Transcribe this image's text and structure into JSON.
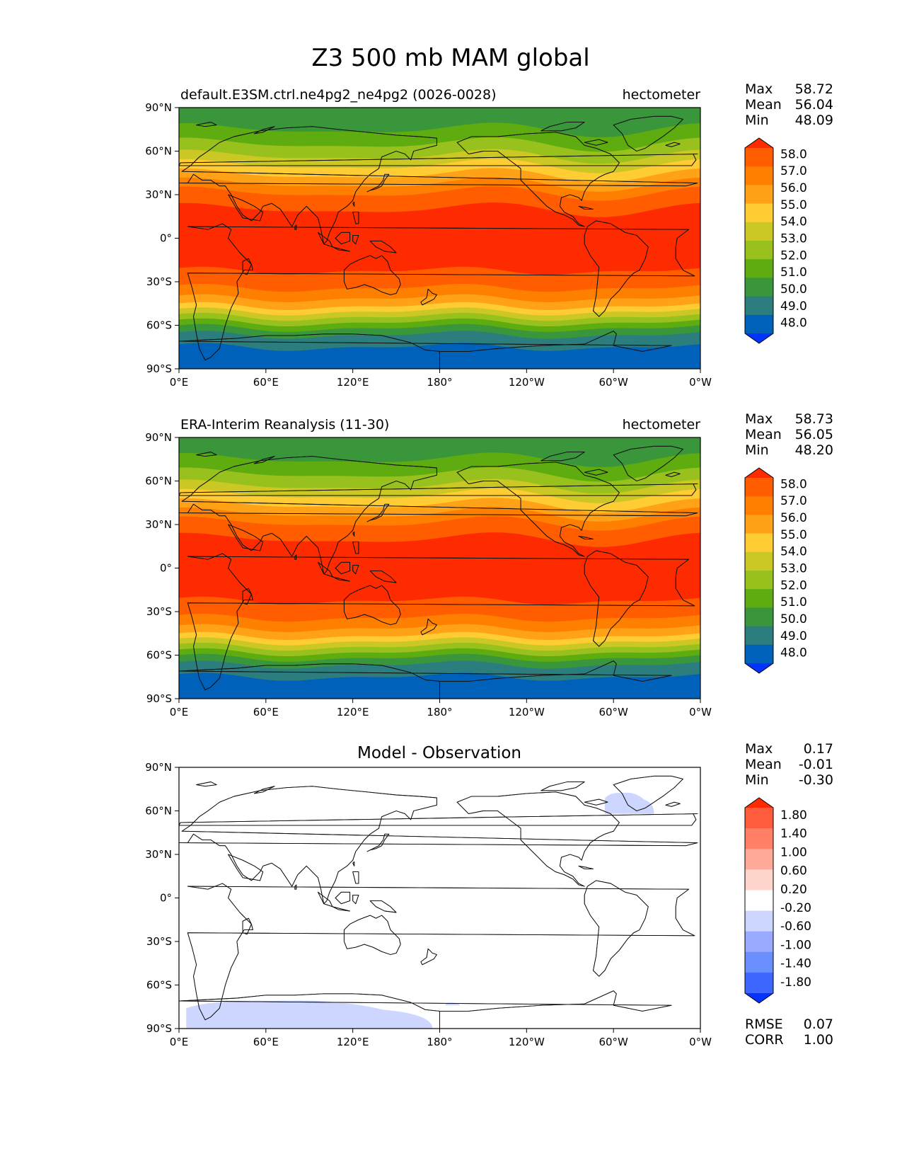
{
  "figure_title": "Z3 500 mb MAM global",
  "colors": {
    "abs_levels": [
      "#0433ff",
      "#0061bb",
      "#2c7d7d",
      "#3a963a",
      "#5fac10",
      "#99c11d",
      "#cbc724",
      "#ffcc33",
      "#ffa218",
      "#ff7f00",
      "#ff5d00",
      "#ff2b00"
    ],
    "diff_levels": [
      "#0433ff",
      "#3e67ff",
      "#6a8fff",
      "#99aaff",
      "#ccd6ff",
      "#ffffff",
      "#ffd6cc",
      "#ffaa99",
      "#ff8066",
      "#ff5c3d",
      "#ff2b00"
    ]
  },
  "panels": [
    {
      "id": "test",
      "left_title": "default.E3SM.ctrl.ne4pg2_ne4pg2 (0026-0028)",
      "right_title": "hectometer",
      "center_title": "",
      "stats": [
        {
          "label": "Max",
          "value": "58.72"
        },
        {
          "label": "Mean",
          "value": "56.04"
        },
        {
          "label": "Min",
          "value": "48.09"
        }
      ],
      "bottom_stats": []
    },
    {
      "id": "ref",
      "left_title": "ERA-Interim Reanalysis (11-30)",
      "right_title": "hectometer",
      "center_title": "",
      "stats": [
        {
          "label": "Max",
          "value": "58.73"
        },
        {
          "label": "Mean",
          "value": "56.05"
        },
        {
          "label": "Min",
          "value": "48.20"
        }
      ],
      "bottom_stats": []
    },
    {
      "id": "diff",
      "left_title": "",
      "right_title": "",
      "center_title": "Model - Observation",
      "stats": [
        {
          "label": "Max",
          "value": "0.17"
        },
        {
          "label": "Mean",
          "value": "-0.01"
        },
        {
          "label": "Min",
          "value": "-0.30"
        }
      ],
      "bottom_stats": [
        {
          "label": "RMSE",
          "value": "0.07"
        },
        {
          "label": "CORR",
          "value": "1.00"
        }
      ]
    }
  ],
  "axes": {
    "x_ticks": [
      "0°E",
      "60°E",
      "120°E",
      "180°",
      "120°W",
      "60°W",
      "0°W"
    ],
    "y_ticks": [
      "90°N",
      "60°N",
      "30°N",
      "0°",
      "30°S",
      "60°S",
      "90°S"
    ]
  },
  "colorbars": {
    "abs_labels": [
      "58.0",
      "57.0",
      "56.0",
      "55.0",
      "54.0",
      "53.0",
      "52.0",
      "51.0",
      "50.0",
      "49.0",
      "48.0"
    ],
    "diff_labels": [
      "1.80",
      "1.40",
      "1.00",
      "0.60",
      "0.20",
      "-0.20",
      "-0.60",
      "-1.00",
      "-1.40",
      "-1.80"
    ]
  },
  "chart_data": [
    {
      "type": "heatmap",
      "panel": "test",
      "title": "default.E3SM.ctrl.ne4pg2_ne4pg2 (0026-0028)",
      "units": "hectometer",
      "field": "Z3 500 mb",
      "season": "MAM",
      "xlim": [
        0,
        360
      ],
      "ylim": [
        -90,
        90
      ],
      "zonal_profile": {
        "lat": [
          90,
          75,
          60,
          45,
          30,
          15,
          0,
          -15,
          -30,
          -45,
          -55,
          -65,
          -75,
          -90
        ],
        "value": [
          50.0,
          51.0,
          52.5,
          54.8,
          57.2,
          58.4,
          58.6,
          58.4,
          57.6,
          55.5,
          52.8,
          50.2,
          49.0,
          48.9
        ]
      },
      "levels": [
        48,
        49,
        50,
        51,
        52,
        53,
        54,
        55,
        56,
        57,
        58
      ]
    },
    {
      "type": "heatmap",
      "panel": "ref",
      "title": "ERA-Interim Reanalysis (11-30)",
      "units": "hectometer",
      "field": "Z3 500 mb",
      "season": "MAM",
      "xlim": [
        0,
        360
      ],
      "ylim": [
        -90,
        90
      ],
      "zonal_profile": {
        "lat": [
          90,
          75,
          60,
          45,
          30,
          15,
          0,
          -15,
          -30,
          -45,
          -55,
          -65,
          -75,
          -90
        ],
        "value": [
          50.1,
          51.0,
          52.5,
          54.8,
          57.2,
          58.4,
          58.6,
          58.4,
          57.6,
          55.5,
          52.8,
          50.2,
          49.0,
          48.9
        ]
      },
      "levels": [
        48,
        49,
        50,
        51,
        52,
        53,
        54,
        55,
        56,
        57,
        58
      ]
    },
    {
      "type": "heatmap",
      "panel": "diff",
      "title": "Model - Observation",
      "xlim": [
        0,
        360
      ],
      "ylim": [
        -90,
        90
      ],
      "levels": [
        -1.8,
        -1.4,
        -1.0,
        -0.6,
        -0.2,
        0.2,
        0.6,
        1.0,
        1.4,
        1.8
      ],
      "negative_regions": [
        {
          "lon": [
            5,
            175
          ],
          "lat": [
            -90,
            -70
          ],
          "range": [
            -0.6,
            -0.2
          ]
        },
        {
          "lon": [
            294,
            328
          ],
          "lat": [
            58,
            73
          ],
          "range": [
            -0.6,
            -0.2
          ]
        },
        {
          "lon": [
            184,
            194
          ],
          "lat": [
            -74,
            -72
          ],
          "range": [
            -0.6,
            -0.2
          ]
        }
      ]
    }
  ]
}
